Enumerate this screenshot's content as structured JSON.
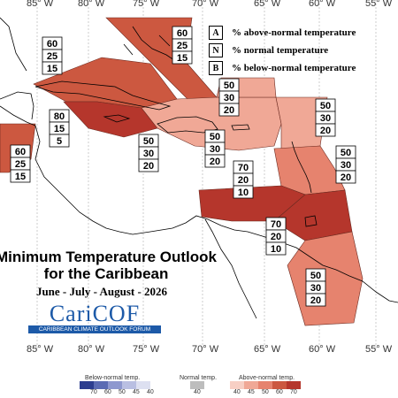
{
  "lon_labels": [
    "85° W",
    "80° W",
    "75° W",
    "70° W",
    "65° W",
    "60° W",
    "55° W"
  ],
  "legend": {
    "a_key": "A",
    "a_text": "% above-normal temperature",
    "n_key": "N",
    "n_text": "% normal temperature",
    "b_key": "B",
    "b_text": "% below-normal temperature"
  },
  "title": {
    "line1": "Minimum Temperature Outlook",
    "line2": "for the Caribbean",
    "period": "June - July - August - 2026"
  },
  "logo": {
    "name": "CariCOF",
    "tagline": "CARIBBEAN CLIMATE OUTLOOK FORUM"
  },
  "colors": {
    "a70": "#b5362c",
    "a60": "#cc5840",
    "a50": "#e6836e",
    "a45": "#f0a896",
    "a40": "#f7cfc4",
    "b70": "#2c3d8f",
    "b60": "#5b6bb3",
    "b50": "#8e98cf",
    "b45": "#b9bfe2",
    "b40": "#dde0f1",
    "n40": "#bdbdbd",
    "land": "#ffffff",
    "coast": "#000000"
  },
  "zones": [
    {
      "id": "bahamas",
      "above": 60,
      "normal": 25,
      "below": 15
    },
    {
      "id": "cuba-west",
      "above": 60,
      "normal": 25,
      "below": 15
    },
    {
      "id": "cayman-jamaica",
      "above": 80,
      "normal": 15,
      "below": 5
    },
    {
      "id": "belize",
      "above": 60,
      "normal": 25,
      "below": 15
    },
    {
      "id": "hispaniola",
      "above": 50,
      "normal": 30,
      "below": 20
    },
    {
      "id": "windward-passage",
      "above": 50,
      "normal": 30,
      "below": 20
    },
    {
      "id": "turks-caicos",
      "above": 50,
      "normal": 30,
      "below": 20
    },
    {
      "id": "leeward-islands",
      "above": 50,
      "normal": 30,
      "below": 20
    },
    {
      "id": "lesser-antilles-east",
      "above": 50,
      "normal": 30,
      "below": 20
    },
    {
      "id": "abc-islands",
      "above": 70,
      "normal": 20,
      "below": 10
    },
    {
      "id": "trinidad-venezuela",
      "above": 70,
      "normal": 20,
      "below": 10
    },
    {
      "id": "guianas",
      "above": 50,
      "normal": 30,
      "below": 20
    }
  ],
  "scale": {
    "below_title": "Below-normal temp.",
    "normal_title": "Normal temp.",
    "above_title": "Above-normal temp.",
    "below_ticks": [
      "70",
      "60",
      "50",
      "45",
      "40"
    ],
    "normal_ticks": [
      "40"
    ],
    "above_ticks": [
      "40",
      "45",
      "50",
      "60",
      "70"
    ]
  }
}
